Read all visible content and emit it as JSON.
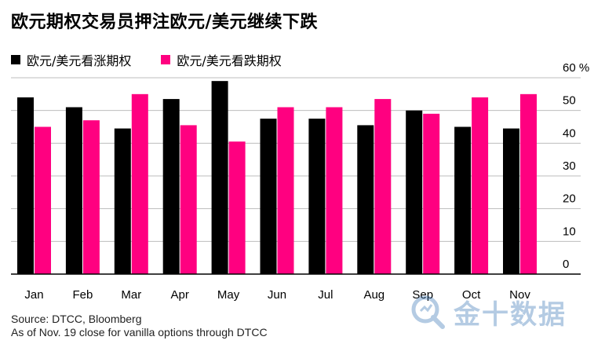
{
  "title": "欧元期权交易员押注欧元/美元继续下跌",
  "legend": {
    "calls_label": "欧元/美元看涨期权",
    "puts_label": "欧元/美元看跌期权"
  },
  "colors": {
    "calls": "#000000",
    "puts": "#ff0080",
    "grid": "#bdbdbd",
    "axis": "#000000",
    "watermark": "#2b6cb0"
  },
  "chart_data": {
    "type": "bar",
    "categories": [
      "Jan",
      "Feb",
      "Mar",
      "Apr",
      "May",
      "Jun",
      "Jul",
      "Aug",
      "Sep",
      "Oct",
      "Nov"
    ],
    "series": [
      {
        "name": "欧元/美元看涨期权",
        "values": [
          54,
          51,
          44.5,
          53.5,
          59,
          47.5,
          47.5,
          45.5,
          50,
          45,
          44.5
        ]
      },
      {
        "name": "欧元/美元看跌期权",
        "values": [
          45,
          47,
          55,
          45.5,
          40.5,
          51,
          51,
          53.5,
          49,
          54,
          55
        ]
      }
    ],
    "yticks": [
      0,
      10,
      20,
      30,
      40,
      50,
      60
    ],
    "ytick_labels": [
      "0",
      "10",
      "20",
      "30",
      "40",
      "50",
      "60 %"
    ],
    "ylim": [
      0,
      60
    ],
    "grid": true,
    "y_axis_side": "right",
    "legend_position": "top-left"
  },
  "source": {
    "line1": "Source: DTCC, Bloomberg",
    "line2": "As of Nov. 19 close for vanilla options through DTCC"
  },
  "watermark": {
    "text": "金十数据",
    "icon": "magnifier-logo-icon"
  }
}
